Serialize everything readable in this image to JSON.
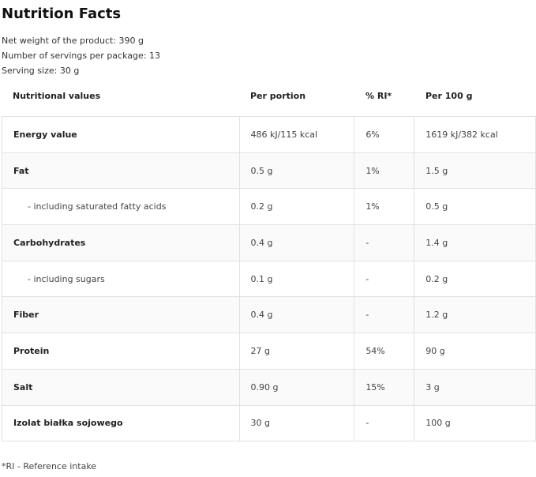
{
  "title": "Nutrition Facts",
  "info": [
    "Net weight of the product: 390 g",
    "Number of servings per package: 13",
    "Serving size: 30 g"
  ],
  "headers": [
    "Nutritional values",
    "Per portion",
    "% RI*",
    "Per 100 g"
  ],
  "rows": [
    {
      "name": "Energy value",
      "portion": "486 kJ/115 kcal",
      "ri": "6%",
      "per100": "1619 kJ/382 kcal",
      "sub": false
    },
    {
      "name": "Fat",
      "portion": "0.5 g",
      "ri": "1%",
      "per100": "1.5 g",
      "sub": false
    },
    {
      "name": "- including saturated fatty acids",
      "portion": "0.2 g",
      "ri": "1%",
      "per100": "0.5 g",
      "sub": true
    },
    {
      "name": "Carbohydrates",
      "portion": "0.4 g",
      "ri": "-",
      "per100": "1.4 g",
      "sub": false
    },
    {
      "name": "- including sugars",
      "portion": "0.1 g",
      "ri": "-",
      "per100": "0.2 g",
      "sub": true
    },
    {
      "name": "Fiber",
      "portion": "0.4 g",
      "ri": "-",
      "per100": "1.2 g",
      "sub": false
    },
    {
      "name": "Protein",
      "portion": "27 g",
      "ri": "54%",
      "per100": "90 g",
      "sub": false
    },
    {
      "name": "Salt",
      "portion": "0.90 g",
      "ri": "15%",
      "per100": "3 g",
      "sub": false
    },
    {
      "name": "Izolat białka sojowego",
      "portion": "30 g",
      "ri": "-",
      "per100": "100 g",
      "sub": false
    }
  ],
  "footnote": "*RI - Reference intake"
}
